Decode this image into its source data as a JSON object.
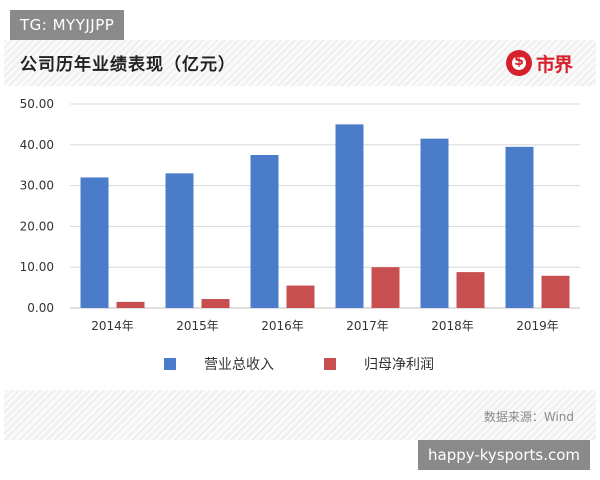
{
  "watermark_top": "TG: MYYJJPP",
  "watermark_bottom": "happy-kysports.com",
  "logo_text": "市界",
  "source": "数据来源：Wind",
  "colors": {
    "series1": "#4a7cc9",
    "series2": "#c84f4f",
    "gridline": "#d9d9d9",
    "logo": "#d6202c"
  },
  "chart_data": {
    "type": "bar",
    "title": "公司历年业绩表现（亿元）",
    "categories": [
      "2014年",
      "2015年",
      "2016年",
      "2017年",
      "2018年",
      "2019年"
    ],
    "series": [
      {
        "name": "营业总收入",
        "values": [
          32.0,
          33.0,
          37.5,
          45.0,
          41.5,
          39.5
        ]
      },
      {
        "name": "归母净利润",
        "values": [
          1.5,
          2.2,
          5.5,
          10.0,
          8.8,
          7.9
        ]
      }
    ],
    "yticks": [
      "0.00",
      "10.00",
      "20.00",
      "30.00",
      "40.00",
      "50.00"
    ],
    "ylim": [
      0,
      50
    ],
    "grid": true,
    "legend": "bottom"
  }
}
